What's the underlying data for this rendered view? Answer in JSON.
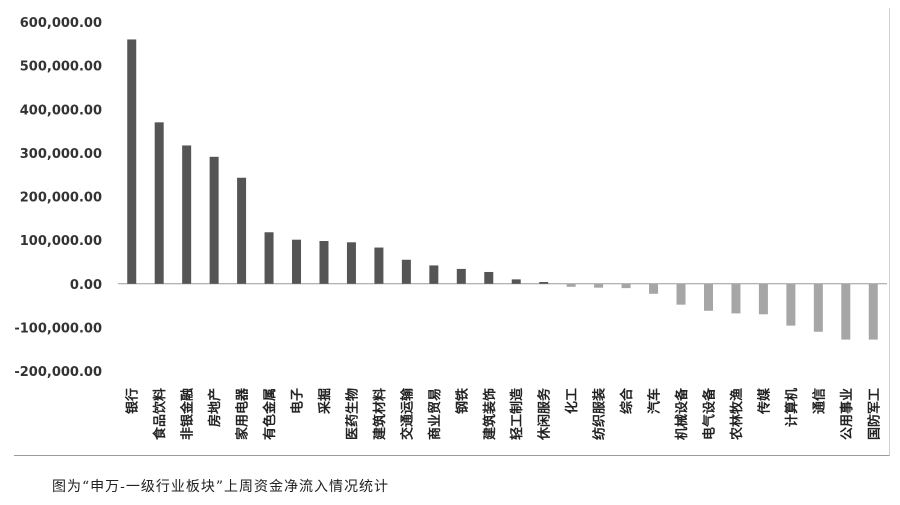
{
  "caption": "图为“申万-一级行业板块”上周资金净流入情况统计",
  "chart_data": {
    "type": "bar",
    "title": "",
    "xlabel": "",
    "ylabel": "",
    "ylim": [
      -200000,
      600000
    ],
    "yticks": [
      -200000,
      -100000,
      0,
      100000,
      200000,
      300000,
      400000,
      500000,
      600000
    ],
    "ytick_labels": [
      "-200,000.00",
      "-100,000.00",
      "0.00",
      "100,000.00",
      "200,000.00",
      "300,000.00",
      "400,000.00",
      "500,000.00",
      "600,000.00"
    ],
    "grid": false,
    "legend": "none",
    "colors": {
      "positive": "#555555",
      "negative": "#a6a6a6"
    },
    "categories": [
      "银行",
      "食品饮料",
      "非银金融",
      "房地产",
      "家用电器",
      "有色金属",
      "电子",
      "采掘",
      "医药生物",
      "建筑材料",
      "交通运输",
      "商业贸易",
      "钢铁",
      "建筑装饰",
      "轻工制造",
      "休闲服务",
      "化工",
      "纺织服装",
      "综合",
      "汽车",
      "机械设备",
      "电气设备",
      "农林牧渔",
      "传媒",
      "计算机",
      "通信",
      "公用事业",
      "国防军工"
    ],
    "values": [
      560000,
      370000,
      317000,
      291000,
      243000,
      118000,
      101000,
      98000,
      95000,
      83000,
      55000,
      42000,
      34000,
      27000,
      10000,
      4000,
      -7000,
      -9000,
      -10000,
      -23000,
      -48000,
      -62000,
      -68000,
      -70000,
      -96000,
      -110000,
      -128000,
      -128000
    ]
  }
}
